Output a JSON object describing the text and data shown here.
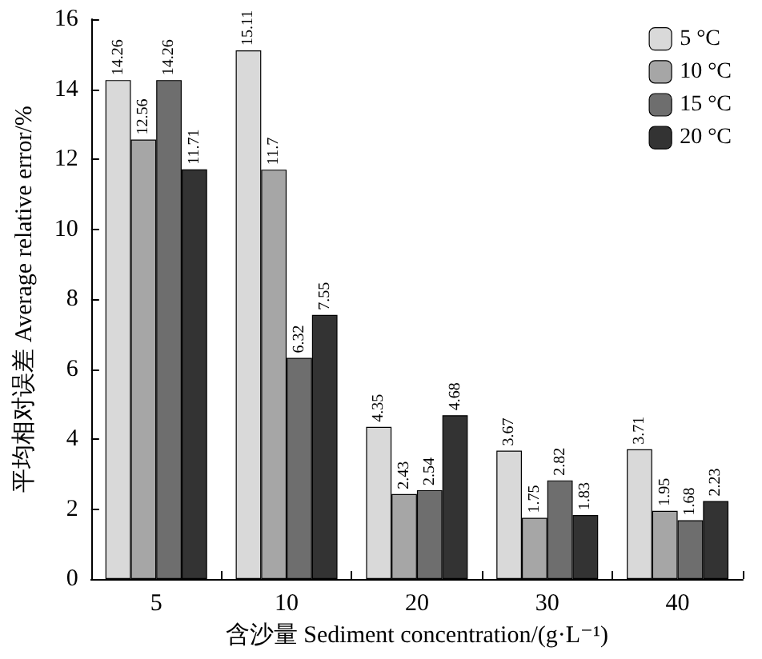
{
  "chart_data": {
    "type": "bar",
    "xlabel": "含沙量 Sediment concentration/(g·L⁻¹)",
    "ylabel": "平均相对误差 Average relative error/%",
    "categories": [
      "5",
      "10",
      "20",
      "30",
      "40"
    ],
    "series": [
      {
        "name": "5 °C",
        "color": "#d9d9d9",
        "values": [
          14.26,
          15.11,
          4.35,
          3.67,
          3.71
        ]
      },
      {
        "name": "10 °C",
        "color": "#a6a6a6",
        "values": [
          12.56,
          11.7,
          2.43,
          1.75,
          1.95
        ]
      },
      {
        "name": "15 °C",
        "color": "#6e6e6e",
        "values": [
          14.26,
          6.32,
          2.54,
          2.82,
          1.68
        ]
      },
      {
        "name": "20 °C",
        "color": "#333333",
        "values": [
          11.71,
          7.55,
          4.68,
          1.83,
          2.23
        ]
      }
    ],
    "ylim": [
      0,
      16
    ],
    "yticks": [
      0,
      2,
      4,
      6,
      8,
      10,
      12,
      14,
      16
    ],
    "grid": false,
    "legend": "top right",
    "data_labels": true
  }
}
